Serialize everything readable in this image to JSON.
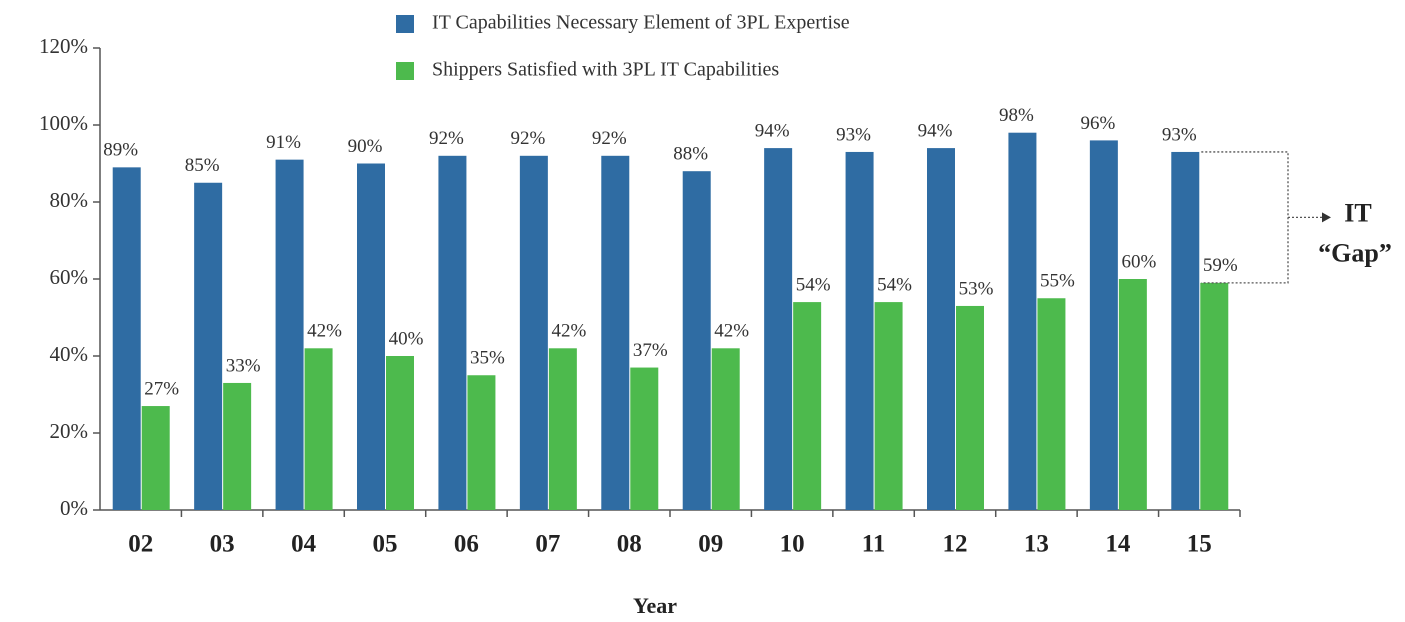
{
  "chart_data": {
    "type": "bar",
    "categories": [
      "02",
      "03",
      "04",
      "05",
      "06",
      "07",
      "08",
      "09",
      "10",
      "11",
      "12",
      "13",
      "14",
      "15"
    ],
    "series": [
      {
        "name": "IT Capabilities Necessary Element of 3PL Expertise",
        "color": "#2f6ca3",
        "values": [
          89,
          85,
          91,
          90,
          92,
          92,
          92,
          88,
          94,
          93,
          94,
          98,
          96,
          93
        ],
        "value_labels": [
          "89%",
          "85%",
          "91%",
          "90%",
          "92%",
          "92%",
          "92%",
          "88%",
          "94%",
          "93%",
          "94%",
          "98%",
          "96%",
          "93%"
        ]
      },
      {
        "name": "Shippers Satisfied with 3PL IT Capabilities",
        "color": "#4dba4d",
        "values": [
          27,
          33,
          42,
          40,
          35,
          42,
          37,
          42,
          54,
          54,
          53,
          55,
          60,
          59
        ],
        "value_labels": [
          "27%",
          "33%",
          "42%",
          "40%",
          "35%",
          "42%",
          "37%",
          "42%",
          "54%",
          "54%",
          "53%",
          "55%",
          "60%",
          "59%"
        ]
      }
    ],
    "ylim": [
      0,
      120
    ],
    "yticks": [
      {
        "value": 0,
        "label": "0%"
      },
      {
        "value": 20,
        "label": "20%"
      },
      {
        "value": 40,
        "label": "40%"
      },
      {
        "value": 60,
        "label": "60%"
      },
      {
        "value": 80,
        "label": "80%"
      },
      {
        "value": 100,
        "label": "100%"
      },
      {
        "value": 120,
        "label": "120%"
      }
    ],
    "xlabel": "Year",
    "annotations": [
      "IT",
      "“Gap”"
    ],
    "legend": "top"
  }
}
